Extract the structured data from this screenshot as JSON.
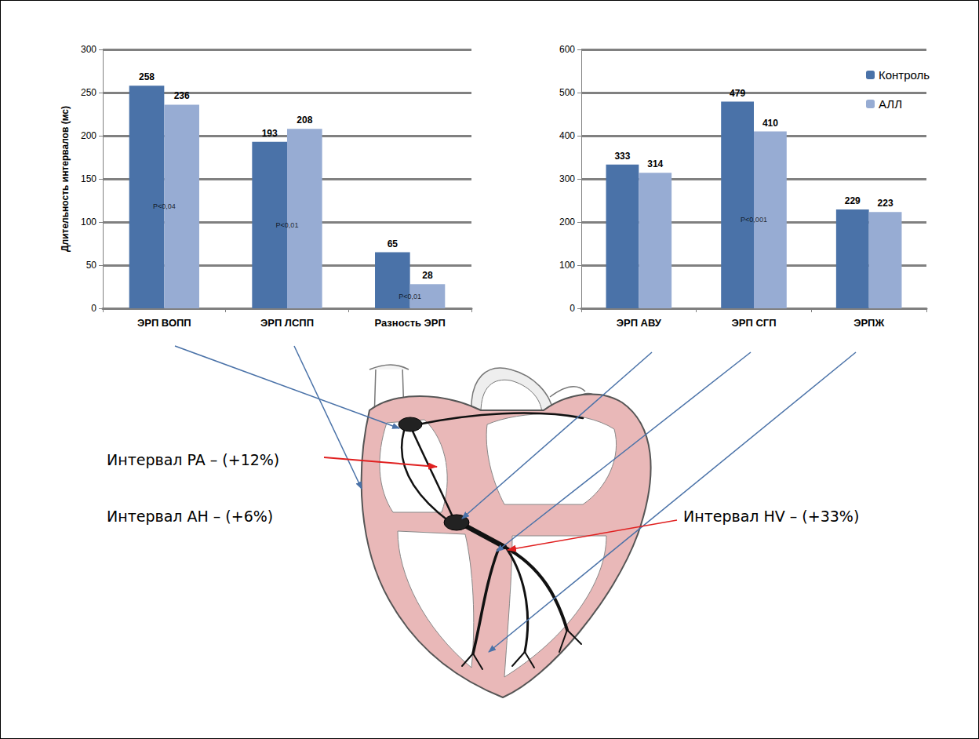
{
  "chart_data": [
    {
      "type": "bar",
      "categories": [
        "ЭРП ВОПП",
        "ЭРП ЛСПП",
        "Разность ЭРП"
      ],
      "series": [
        {
          "name": "Контроль",
          "color": "#4a72a8",
          "values": [
            258,
            193,
            65
          ]
        },
        {
          "name": "АЛЛ",
          "color": "#97acd3",
          "values": [
            236,
            208,
            28
          ]
        }
      ],
      "ylabel": "Длительность интервалов (мс)",
      "ylim": [
        0,
        300
      ],
      "yticks": [
        0,
        50,
        100,
        150,
        200,
        250,
        300
      ],
      "grid": true,
      "data_labels": true,
      "annotations": [
        {
          "category": "ЭРП ВОПП",
          "text": "P<0,04"
        },
        {
          "category": "ЭРП ЛСПП",
          "text": "P<0,01"
        },
        {
          "category": "Разность ЭРП",
          "text": "P<0,01"
        }
      ]
    },
    {
      "type": "bar",
      "categories": [
        "ЭРП АВУ",
        "ЭРП СГП",
        "ЭРПЖ"
      ],
      "series": [
        {
          "name": "Контроль",
          "color": "#4a72a8",
          "values": [
            333,
            479,
            229
          ]
        },
        {
          "name": "АЛЛ",
          "color": "#97acd3",
          "values": [
            314,
            410,
            223
          ]
        }
      ],
      "ylim": [
        0,
        600
      ],
      "yticks": [
        0,
        100,
        200,
        300,
        400,
        500,
        600
      ],
      "grid": true,
      "data_labels": true,
      "legend": "upper right",
      "annotations": [
        {
          "category": "ЭРП СГП",
          "text": "P<0,001"
        }
      ]
    }
  ],
  "diagram": {
    "labels": [
      "Интервал PA – (+12%)",
      "Интервал AH – (+6%)",
      "Интервал HV – (+33%)"
    ]
  }
}
